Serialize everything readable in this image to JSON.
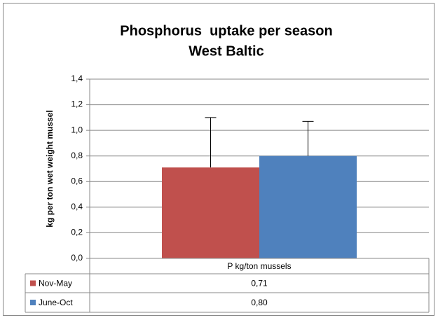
{
  "chart_data": {
    "type": "bar",
    "title": "Phosphorus  uptake per season",
    "subtitle": "West Baltic",
    "y_label": "kg per ton wet weight mussel",
    "categories": [
      "P kg/ton mussels"
    ],
    "series": [
      {
        "name": "Nov-May",
        "color": "#c0504d",
        "values": [
          0.71
        ],
        "errors": [
          0.39
        ],
        "value_labels": [
          "0,71"
        ]
      },
      {
        "name": "June-Oct",
        "color": "#4f81bd",
        "values": [
          0.8
        ],
        "errors": [
          0.27
        ],
        "value_labels": [
          "0,80"
        ]
      }
    ],
    "ylim": [
      0,
      1.4
    ],
    "yticks": [
      {
        "value": 0,
        "label": "0,0"
      },
      {
        "value": 0.2,
        "label": "0,2"
      },
      {
        "value": 0.4,
        "label": "0,4"
      },
      {
        "value": 0.6,
        "label": "0,6"
      },
      {
        "value": 0.8,
        "label": "0,8"
      },
      {
        "value": 1.0,
        "label": "1,0"
      },
      {
        "value": 1.2,
        "label": "1,2"
      },
      {
        "value": 1.4,
        "label": "1,4"
      }
    ],
    "grid": true
  }
}
